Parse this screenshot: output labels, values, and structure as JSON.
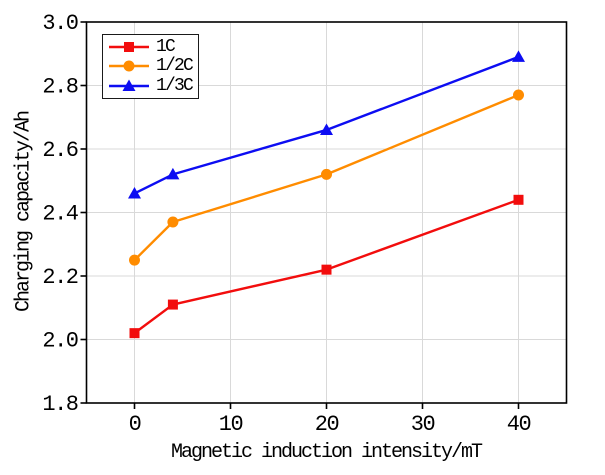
{
  "figure": {
    "background": "#ffffff",
    "frame_color": "#000000",
    "grid_color": "#d9d9d9",
    "tick_label_color": "#000000"
  },
  "chart_data": {
    "type": "line",
    "title": "",
    "xlabel": "Magnetic induction intensity/mT",
    "ylabel": "Charging capacity/Ah",
    "xlim": [
      -5,
      45
    ],
    "ylim": [
      1.8,
      3.0
    ],
    "xticks": [
      0,
      10,
      20,
      30,
      40
    ],
    "yticks": [
      1.8,
      2.0,
      2.2,
      2.4,
      2.6,
      2.8,
      3.0
    ],
    "grid": true,
    "legend_position": "upper-left",
    "x": [
      0,
      4,
      20,
      40
    ],
    "series": [
      {
        "name": "1C",
        "marker": "square",
        "color": "#f20d0d",
        "values": [
          2.02,
          2.11,
          2.22,
          2.44
        ]
      },
      {
        "name": "1/2C",
        "marker": "circle",
        "color": "#ff8c00",
        "values": [
          2.25,
          2.37,
          2.52,
          2.77
        ]
      },
      {
        "name": "1/3C",
        "marker": "triangle",
        "color": "#0d0df2",
        "values": [
          2.46,
          2.52,
          2.66,
          2.89
        ]
      }
    ]
  }
}
